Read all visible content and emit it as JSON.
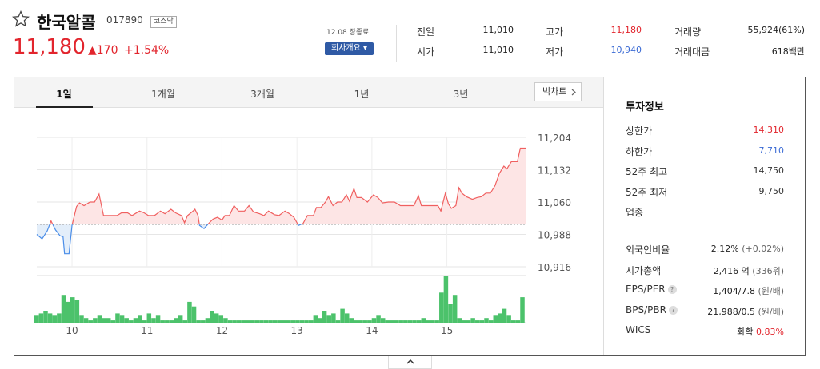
{
  "stock": {
    "name": "한국알콜",
    "code": "017890",
    "market": "코스닥",
    "price": "11,180",
    "change": "▲170",
    "change_pct": "+1.54%",
    "date_label": "12.08 장종료",
    "company_btn": "회사개요 ▾"
  },
  "summary": [
    {
      "label": "전일",
      "value": "11,010",
      "color": "#333333"
    },
    {
      "label": "시가",
      "value": "11,010",
      "color": "#333333"
    },
    {
      "label": "고가",
      "value": "11,180",
      "color": "#e2252d"
    },
    {
      "label": "저가",
      "value": "10,940",
      "color": "#3a6ad4"
    },
    {
      "label": "거래량",
      "value": "55,924(61%)",
      "color": "#333333"
    },
    {
      "label": "거래대금",
      "value": "618백만",
      "color": "#333333"
    }
  ],
  "tabs": [
    "1일",
    "1개월",
    "3개월",
    "1년",
    "3년"
  ],
  "big_chart_btn": "빅차트",
  "invest": {
    "title": "투자정보",
    "items": [
      {
        "label": "상한가",
        "value": "14,310",
        "color": "#e2252d"
      },
      {
        "label": "하한가",
        "value": "7,710",
        "color": "#3a6ad4"
      },
      {
        "label": "52주 최고",
        "value": "14,750",
        "color": "#333333"
      },
      {
        "label": "52주 최저",
        "value": "9,750",
        "color": "#333333"
      },
      {
        "label": "업종",
        "value": "",
        "color": "#333333"
      }
    ],
    "items2": [
      {
        "label": "외국인비율",
        "value": "2.12%",
        "sub": "(+0.02%)",
        "help": false
      },
      {
        "label": "시가총액",
        "value": "2,416 억",
        "sub": "(336위)",
        "help": false
      },
      {
        "label": "EPS/PER",
        "value": "1,404/7.8",
        "sub": "(원/배)",
        "help": true
      },
      {
        "label": "BPS/PBR",
        "value": "21,988/0.5",
        "sub": "(원/배)",
        "help": true
      },
      {
        "label": "WICS",
        "value": "화학",
        "sub": "0.83%",
        "help": false
      }
    ]
  },
  "chart_data": {
    "type": "line",
    "y_ticks": [
      "11,204",
      "11,132",
      "11,060",
      "10,988",
      "10,916"
    ],
    "y_tick_values": [
      11204,
      11132,
      11060,
      10988,
      10916
    ],
    "x_ticks": [
      "10",
      "11",
      "12",
      "13",
      "14",
      "15"
    ],
    "x_tick_positions": [
      1,
      2,
      3,
      4,
      5,
      6
    ],
    "baseline": 11010,
    "x_range": [
      0.03,
      6.55
    ],
    "price_series": [
      [
        0.03,
        10988
      ],
      [
        0.1,
        10978
      ],
      [
        0.17,
        10996
      ],
      [
        0.22,
        11018
      ],
      [
        0.28,
        10998
      ],
      [
        0.34,
        10985
      ],
      [
        0.38,
        10983
      ],
      [
        0.4,
        10945
      ],
      [
        0.46,
        10945
      ],
      [
        0.5,
        11008
      ],
      [
        0.56,
        11050
      ],
      [
        0.6,
        11058
      ],
      [
        0.66,
        11052
      ],
      [
        0.74,
        11060
      ],
      [
        0.8,
        11060
      ],
      [
        0.86,
        11078
      ],
      [
        0.92,
        11030
      ],
      [
        1.0,
        11030
      ],
      [
        1.1,
        11030
      ],
      [
        1.16,
        11036
      ],
      [
        1.24,
        11036
      ],
      [
        1.3,
        11030
      ],
      [
        1.4,
        11040
      ],
      [
        1.46,
        11036
      ],
      [
        1.52,
        11030
      ],
      [
        1.6,
        11030
      ],
      [
        1.68,
        11040
      ],
      [
        1.74,
        11034
      ],
      [
        1.82,
        11044
      ],
      [
        1.88,
        11036
      ],
      [
        1.96,
        11030
      ],
      [
        2.0,
        11014
      ],
      [
        2.04,
        11030
      ],
      [
        2.1,
        11038
      ],
      [
        2.14,
        11044
      ],
      [
        2.18,
        11030
      ],
      [
        2.2,
        11008
      ],
      [
        2.26,
        11001
      ],
      [
        2.32,
        11012
      ],
      [
        2.38,
        11022
      ],
      [
        2.44,
        11026
      ],
      [
        2.5,
        11020
      ],
      [
        2.54,
        11030
      ],
      [
        2.6,
        11030
      ],
      [
        2.66,
        11052
      ],
      [
        2.72,
        11040
      ],
      [
        2.8,
        11040
      ],
      [
        2.86,
        11052
      ],
      [
        2.92,
        11038
      ],
      [
        3.0,
        11034
      ],
      [
        3.06,
        11030
      ],
      [
        3.12,
        11040
      ],
      [
        3.2,
        11032
      ],
      [
        3.26,
        11030
      ],
      [
        3.34,
        11040
      ],
      [
        3.4,
        11034
      ],
      [
        3.46,
        11026
      ],
      [
        3.52,
        11008
      ],
      [
        3.58,
        11012
      ],
      [
        3.64,
        11030
      ],
      [
        3.72,
        11030
      ],
      [
        3.76,
        11048
      ],
      [
        3.82,
        11048
      ],
      [
        3.88,
        11060
      ],
      [
        3.92,
        11072
      ],
      [
        3.98,
        11052
      ],
      [
        4.04,
        11060
      ],
      [
        4.1,
        11060
      ],
      [
        4.16,
        11076
      ],
      [
        4.2,
        11062
      ],
      [
        4.26,
        11090
      ],
      [
        4.3,
        11070
      ],
      [
        4.36,
        11070
      ],
      [
        4.44,
        11060
      ],
      [
        4.52,
        11076
      ],
      [
        4.58,
        11070
      ],
      [
        4.64,
        11058
      ],
      [
        4.72,
        11060
      ],
      [
        4.8,
        11060
      ],
      [
        4.88,
        11052
      ],
      [
        4.96,
        11052
      ],
      [
        5.06,
        11052
      ],
      [
        5.12,
        11074
      ],
      [
        5.16,
        11052
      ],
      [
        5.24,
        11052
      ],
      [
        5.32,
        11052
      ],
      [
        5.38,
        11052
      ],
      [
        5.42,
        11040
      ],
      [
        5.48,
        11080
      ],
      [
        5.52,
        11056
      ],
      [
        5.56,
        11046
      ],
      [
        5.62,
        11052
      ],
      [
        5.66,
        11092
      ],
      [
        5.7,
        11080
      ],
      [
        5.76,
        11072
      ],
      [
        5.84,
        11066
      ],
      [
        5.9,
        11070
      ],
      [
        5.96,
        11072
      ],
      [
        6.02,
        11080
      ],
      [
        6.08,
        11080
      ],
      [
        6.14,
        11096
      ],
      [
        6.2,
        11124
      ],
      [
        6.26,
        11140
      ],
      [
        6.3,
        11134
      ],
      [
        6.36,
        11150
      ],
      [
        6.44,
        11150
      ],
      [
        6.48,
        11180
      ],
      [
        6.55,
        11180
      ]
    ],
    "volume_bars": [
      [
        0.03,
        3
      ],
      [
        0.09,
        4
      ],
      [
        0.15,
        5
      ],
      [
        0.21,
        4
      ],
      [
        0.27,
        3
      ],
      [
        0.33,
        4
      ],
      [
        0.39,
        12
      ],
      [
        0.45,
        9
      ],
      [
        0.51,
        11
      ],
      [
        0.57,
        10
      ],
      [
        0.63,
        3
      ],
      [
        0.69,
        2
      ],
      [
        0.75,
        1
      ],
      [
        0.81,
        2
      ],
      [
        0.87,
        3
      ],
      [
        0.93,
        2
      ],
      [
        0.99,
        2
      ],
      [
        1.05,
        1
      ],
      [
        1.11,
        4
      ],
      [
        1.17,
        3
      ],
      [
        1.23,
        2
      ],
      [
        1.29,
        1
      ],
      [
        1.35,
        2
      ],
      [
        1.41,
        3
      ],
      [
        1.47,
        1
      ],
      [
        1.53,
        4
      ],
      [
        1.59,
        2
      ],
      [
        1.65,
        3
      ],
      [
        1.71,
        1
      ],
      [
        1.77,
        1
      ],
      [
        1.83,
        1
      ],
      [
        1.89,
        2
      ],
      [
        1.95,
        3
      ],
      [
        2.01,
        1
      ],
      [
        2.07,
        9
      ],
      [
        2.13,
        7
      ],
      [
        2.19,
        1
      ],
      [
        2.25,
        1
      ],
      [
        2.31,
        2
      ],
      [
        2.37,
        5
      ],
      [
        2.43,
        4
      ],
      [
        2.49,
        3
      ],
      [
        2.55,
        2
      ],
      [
        2.61,
        1
      ],
      [
        2.67,
        1
      ],
      [
        2.73,
        1
      ],
      [
        2.79,
        1
      ],
      [
        2.85,
        1
      ],
      [
        2.91,
        1
      ],
      [
        2.97,
        1
      ],
      [
        3.03,
        1
      ],
      [
        3.09,
        1
      ],
      [
        3.15,
        1
      ],
      [
        3.21,
        1
      ],
      [
        3.27,
        1
      ],
      [
        3.33,
        1
      ],
      [
        3.39,
        1
      ],
      [
        3.45,
        1
      ],
      [
        3.51,
        1
      ],
      [
        3.57,
        1
      ],
      [
        3.63,
        1
      ],
      [
        3.69,
        1
      ],
      [
        3.75,
        3
      ],
      [
        3.81,
        2
      ],
      [
        3.87,
        5
      ],
      [
        3.93,
        3
      ],
      [
        3.99,
        4
      ],
      [
        4.05,
        1
      ],
      [
        4.11,
        6
      ],
      [
        4.17,
        4
      ],
      [
        4.23,
        2
      ],
      [
        4.29,
        1
      ],
      [
        4.35,
        1
      ],
      [
        4.41,
        1
      ],
      [
        4.47,
        1
      ],
      [
        4.53,
        2
      ],
      [
        4.59,
        3
      ],
      [
        4.65,
        2
      ],
      [
        4.71,
        1
      ],
      [
        4.77,
        1
      ],
      [
        4.83,
        1
      ],
      [
        4.89,
        1
      ],
      [
        4.95,
        1
      ],
      [
        5.01,
        1
      ],
      [
        5.07,
        1
      ],
      [
        5.13,
        1
      ],
      [
        5.19,
        2
      ],
      [
        5.25,
        1
      ],
      [
        5.31,
        1
      ],
      [
        5.37,
        1
      ],
      [
        5.43,
        13
      ],
      [
        5.49,
        20
      ],
      [
        5.55,
        8
      ],
      [
        5.61,
        12
      ],
      [
        5.67,
        2
      ],
      [
        5.73,
        1
      ],
      [
        5.79,
        1
      ],
      [
        5.85,
        2
      ],
      [
        5.91,
        1
      ],
      [
        5.97,
        1
      ],
      [
        6.03,
        2
      ],
      [
        6.09,
        1
      ],
      [
        6.15,
        3
      ],
      [
        6.21,
        4
      ],
      [
        6.27,
        6
      ],
      [
        6.33,
        3
      ],
      [
        6.39,
        1
      ],
      [
        6.45,
        1
      ],
      [
        6.51,
        11
      ]
    ]
  },
  "toggle_icon": "chevron-up-icon"
}
